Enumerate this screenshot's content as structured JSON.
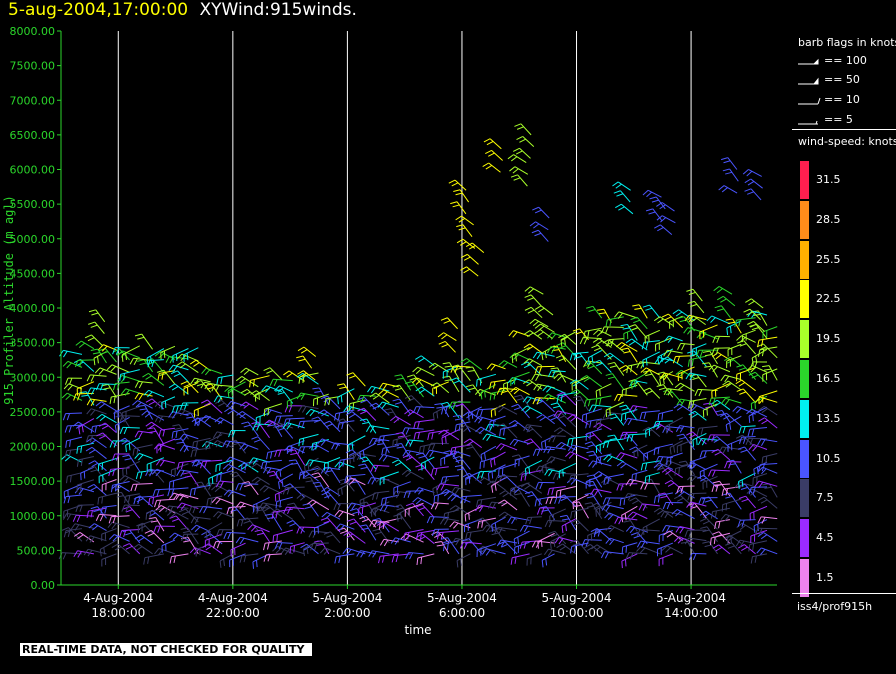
{
  "header": {
    "date": "5-aug-2004,17:00:00",
    "title": "XYWind:915winds."
  },
  "footer": {
    "note": "REAL-TIME DATA, NOT CHECKED FOR QUALITY"
  },
  "source_label": "iss4/prof915h",
  "legend": {
    "barb_title": "barb flags in knots",
    "barb_items": [
      "== 100",
      "== 50",
      "== 10",
      "== 5"
    ],
    "speed_title": "wind-speed: knots",
    "speed_bins": [
      {
        "label": "31.5",
        "color": "#ff1f4f"
      },
      {
        "label": "28.5",
        "color": "#ff8c1a"
      },
      {
        "label": "25.5",
        "color": "#ffb000"
      },
      {
        "label": "22.5",
        "color": "#ffff00"
      },
      {
        "label": "19.5",
        "color": "#a8ff2a"
      },
      {
        "label": "16.5",
        "color": "#2bd62b"
      },
      {
        "label": "13.5",
        "color": "#00f0f0"
      },
      {
        "label": "10.5",
        "color": "#4a55ff"
      },
      {
        "label": "7.5",
        "color": "#3a3c66"
      },
      {
        "label": "4.5",
        "color": "#9b2bff"
      },
      {
        "label": "1.5",
        "color": "#ee82ee"
      }
    ]
  },
  "chart_data": {
    "type": "scatter",
    "title": "5-aug-2004,17:00:00 XYWind:915winds.",
    "xlabel": "time",
    "ylabel": "915 Profiler Altitude (m agl)",
    "ylim": [
      0,
      8000
    ],
    "xlim": [
      "2004-08-04 16:00",
      "2004-08-05 17:00"
    ],
    "yticks": [
      "0.00",
      "500.00",
      "1000.00",
      "1500.00",
      "2000.00",
      "2500.00",
      "3000.00",
      "3500.00",
      "4000.00",
      "4500.00",
      "5000.00",
      "5500.00",
      "6000.00",
      "6500.00",
      "7000.00",
      "7500.00",
      "8000.00"
    ],
    "xticks": [
      {
        "date": "4-Aug-2004",
        "time": "18:00:00"
      },
      {
        "date": "4-Aug-2004",
        "time": "22:00:00"
      },
      {
        "date": "5-Aug-2004",
        "time": "2:00:00"
      },
      {
        "date": "5-Aug-2004",
        "time": "6:00:00"
      },
      {
        "date": "5-Aug-2004",
        "time": "10:00:00"
      },
      {
        "date": "5-Aug-2004",
        "time": "14:00:00"
      }
    ],
    "grid": "vertical",
    "colors": {
      "axis": "#2bd62b",
      "axis_label": "#2bd62b",
      "grid": "#ffffff"
    },
    "barb_clusters": [
      {
        "t_hours": 18.5,
        "alt_low": 300,
        "alt_high": 3900,
        "speed": "mixed"
      },
      {
        "t_hours": 22.0,
        "alt_low": 300,
        "alt_high": 3400,
        "speed": "mixed"
      },
      {
        "t_hours": 2.0,
        "alt_low": 300,
        "alt_high": 3400,
        "speed": "mixed"
      },
      {
        "t_hours": 6.0,
        "alt_low": 300,
        "alt_high": 6300,
        "speed": "mixed"
      },
      {
        "t_hours": 10.0,
        "alt_low": 300,
        "alt_high": 6600,
        "speed": "mixed"
      },
      {
        "t_hours": 14.0,
        "alt_low": 300,
        "alt_high": 6000,
        "speed": "mixed"
      }
    ]
  }
}
